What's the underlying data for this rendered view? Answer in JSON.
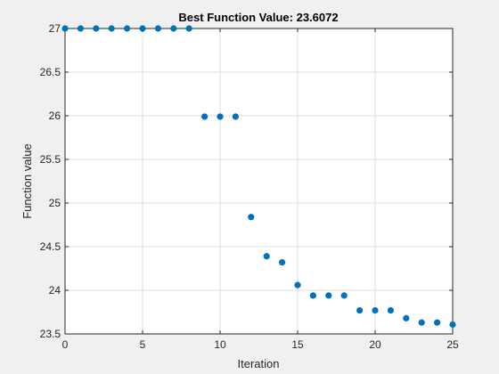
{
  "chart_data": {
    "type": "scatter",
    "title_prefix": "Best Function Value: ",
    "title_value": "23.6072",
    "xlabel": "Iteration",
    "ylabel": "Function value",
    "xlim": [
      0,
      25
    ],
    "ylim": [
      23.5,
      27
    ],
    "xticks": [
      0,
      5,
      10,
      15,
      20,
      25
    ],
    "xtick_labels": [
      "0",
      "5",
      "10",
      "15",
      "20",
      "25"
    ],
    "yticks": [
      23.5,
      24,
      24.5,
      25,
      25.5,
      26,
      26.5,
      27
    ],
    "ytick_labels": [
      "23.5",
      "24",
      "24.5",
      "25",
      "25.5",
      "26",
      "26.5",
      "27"
    ],
    "grid": true,
    "marker_color": "#0072bd",
    "x": [
      0,
      1,
      2,
      3,
      4,
      5,
      6,
      7,
      8,
      9,
      10,
      11,
      12,
      13,
      14,
      15,
      16,
      17,
      18,
      19,
      20,
      21,
      22,
      23,
      24,
      25
    ],
    "y": [
      27,
      27,
      27,
      27,
      27,
      27,
      27,
      27,
      27,
      25.99,
      25.99,
      25.99,
      24.84,
      24.39,
      24.32,
      24.06,
      23.94,
      23.94,
      23.94,
      23.77,
      23.77,
      23.77,
      23.68,
      23.63,
      23.63,
      23.6072
    ]
  }
}
